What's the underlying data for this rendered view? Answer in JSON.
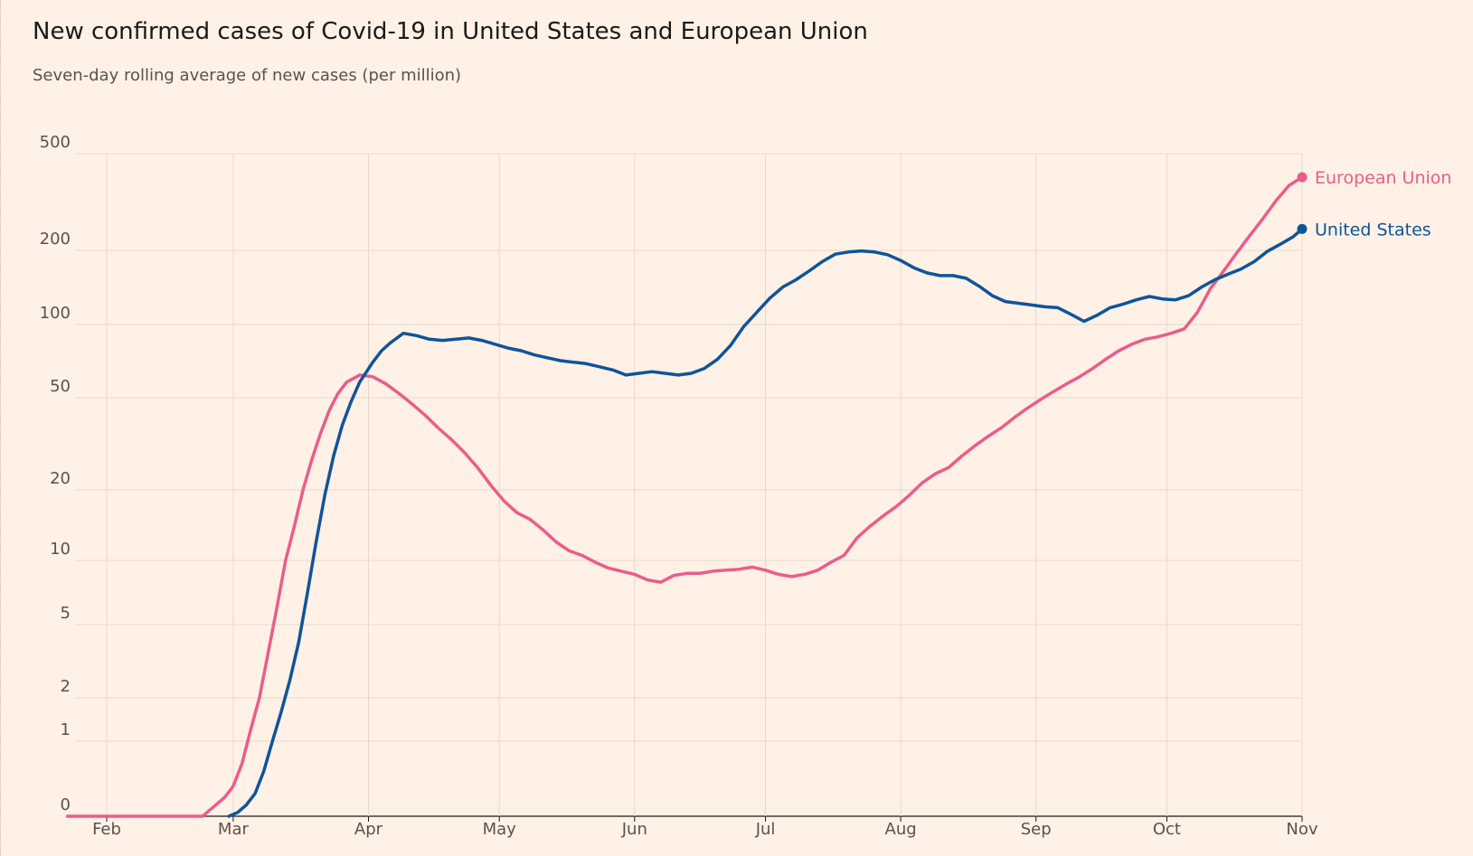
{
  "chart_data": {
    "type": "line",
    "title": "New confirmed cases of Covid-19 in United States and European Union",
    "subtitle": "Seven-day rolling average of new cases (per million)",
    "y_scale": "log (symlog, 0 at baseline)",
    "y_ticks": [
      0,
      1,
      2,
      5,
      10,
      20,
      50,
      100,
      200,
      500
    ],
    "y_tick_labels": [
      "0",
      "1",
      "2",
      "5",
      "10",
      "20",
      "50",
      "100",
      "200",
      "500"
    ],
    "x_ticks": [
      "Feb",
      "Mar",
      "Apr",
      "May",
      "Jun",
      "Jul",
      "Aug",
      "Sep",
      "Oct",
      "Nov"
    ],
    "x_range": [
      "2020-01-23",
      "2020-11-01"
    ],
    "ylim": [
      0,
      500
    ],
    "grid": true,
    "legend": "direct labels at line ends (right)",
    "colors": {
      "background": "#fff1e5",
      "grid": "#e6d9ce",
      "axis_text": "#59524c",
      "title": "#1a1a1a",
      "european_union": "#e95d8c",
      "united_states": "#0f5499"
    },
    "series": [
      {
        "name": "European Union",
        "color": "#e95d8c",
        "points": [
          [
            "2020-01-23",
            0
          ],
          [
            "2020-02-15",
            0
          ],
          [
            "2020-02-23",
            0
          ],
          [
            "2020-02-25",
            0.1
          ],
          [
            "2020-02-28",
            0.25
          ],
          [
            "2020-03-01",
            0.4
          ],
          [
            "2020-03-03",
            0.7
          ],
          [
            "2020-03-05",
            1.2
          ],
          [
            "2020-03-07",
            2.0
          ],
          [
            "2020-03-09",
            3.5
          ],
          [
            "2020-03-11",
            6
          ],
          [
            "2020-03-13",
            10
          ],
          [
            "2020-03-15",
            14
          ],
          [
            "2020-03-17",
            20
          ],
          [
            "2020-03-19",
            27
          ],
          [
            "2020-03-21",
            35
          ],
          [
            "2020-03-23",
            44
          ],
          [
            "2020-03-25",
            52
          ],
          [
            "2020-03-27",
            58
          ],
          [
            "2020-03-30",
            62
          ],
          [
            "2020-04-02",
            61
          ],
          [
            "2020-04-05",
            57
          ],
          [
            "2020-04-08",
            52
          ],
          [
            "2020-04-11",
            47
          ],
          [
            "2020-04-14",
            42
          ],
          [
            "2020-04-17",
            37
          ],
          [
            "2020-04-20",
            33
          ],
          [
            "2020-04-23",
            29
          ],
          [
            "2020-04-26",
            25
          ],
          [
            "2020-04-29",
            21
          ],
          [
            "2020-05-02",
            18
          ],
          [
            "2020-05-05",
            16
          ],
          [
            "2020-05-08",
            15
          ],
          [
            "2020-05-11",
            13.5
          ],
          [
            "2020-05-14",
            12
          ],
          [
            "2020-05-17",
            11
          ],
          [
            "2020-05-20",
            10.5
          ],
          [
            "2020-05-23",
            9.8
          ],
          [
            "2020-05-26",
            9.2
          ],
          [
            "2020-05-29",
            8.9
          ],
          [
            "2020-06-01",
            8.6
          ],
          [
            "2020-06-04",
            8.1
          ],
          [
            "2020-06-07",
            7.9
          ],
          [
            "2020-06-10",
            8.5
          ],
          [
            "2020-06-13",
            8.7
          ],
          [
            "2020-06-16",
            8.7
          ],
          [
            "2020-06-19",
            8.9
          ],
          [
            "2020-06-22",
            9.0
          ],
          [
            "2020-06-25",
            9.1
          ],
          [
            "2020-06-28",
            9.3
          ],
          [
            "2020-07-01",
            9.0
          ],
          [
            "2020-07-04",
            8.6
          ],
          [
            "2020-07-07",
            8.4
          ],
          [
            "2020-07-10",
            8.6
          ],
          [
            "2020-07-13",
            9.0
          ],
          [
            "2020-07-16",
            9.8
          ],
          [
            "2020-07-19",
            10.5
          ],
          [
            "2020-07-22",
            12.5
          ],
          [
            "2020-07-25",
            14
          ],
          [
            "2020-07-28",
            15.5
          ],
          [
            "2020-07-31",
            17
          ],
          [
            "2020-08-03",
            19
          ],
          [
            "2020-08-06",
            21.5
          ],
          [
            "2020-08-09",
            23.5
          ],
          [
            "2020-08-12",
            25
          ],
          [
            "2020-08-15",
            28
          ],
          [
            "2020-08-18",
            31
          ],
          [
            "2020-08-21",
            34
          ],
          [
            "2020-08-24",
            37
          ],
          [
            "2020-08-27",
            41
          ],
          [
            "2020-08-30",
            45
          ],
          [
            "2020-09-02",
            49
          ],
          [
            "2020-09-05",
            53
          ],
          [
            "2020-09-08",
            57
          ],
          [
            "2020-09-11",
            61
          ],
          [
            "2020-09-14",
            66
          ],
          [
            "2020-09-17",
            72
          ],
          [
            "2020-09-20",
            78
          ],
          [
            "2020-09-23",
            83
          ],
          [
            "2020-09-26",
            87
          ],
          [
            "2020-09-29",
            89
          ],
          [
            "2020-10-02",
            92
          ],
          [
            "2020-10-05",
            96
          ],
          [
            "2020-10-08",
            112
          ],
          [
            "2020-10-11",
            140
          ],
          [
            "2020-10-14",
            165
          ],
          [
            "2020-10-17",
            195
          ],
          [
            "2020-10-20",
            230
          ],
          [
            "2020-10-23",
            270
          ],
          [
            "2020-10-26",
            320
          ],
          [
            "2020-10-29",
            370
          ],
          [
            "2020-11-01",
            400
          ]
        ]
      },
      {
        "name": "United States",
        "color": "#0f5499",
        "points": [
          [
            "2020-02-29",
            0
          ],
          [
            "2020-03-02",
            0.05
          ],
          [
            "2020-03-04",
            0.15
          ],
          [
            "2020-03-06",
            0.3
          ],
          [
            "2020-03-08",
            0.6
          ],
          [
            "2020-03-10",
            1.0
          ],
          [
            "2020-03-12",
            1.6
          ],
          [
            "2020-03-14",
            2.5
          ],
          [
            "2020-03-16",
            4
          ],
          [
            "2020-03-18",
            7
          ],
          [
            "2020-03-20",
            12
          ],
          [
            "2020-03-22",
            19
          ],
          [
            "2020-03-24",
            28
          ],
          [
            "2020-03-26",
            38
          ],
          [
            "2020-03-28",
            48
          ],
          [
            "2020-03-30",
            58
          ],
          [
            "2020-04-02",
            70
          ],
          [
            "2020-04-04",
            78
          ],
          [
            "2020-04-06",
            84
          ],
          [
            "2020-04-09",
            92
          ],
          [
            "2020-04-12",
            90
          ],
          [
            "2020-04-15",
            87
          ],
          [
            "2020-04-18",
            86
          ],
          [
            "2020-04-21",
            87
          ],
          [
            "2020-04-24",
            88
          ],
          [
            "2020-04-27",
            86
          ],
          [
            "2020-04-30",
            83
          ],
          [
            "2020-05-03",
            80
          ],
          [
            "2020-05-06",
            78
          ],
          [
            "2020-05-09",
            75
          ],
          [
            "2020-05-12",
            73
          ],
          [
            "2020-05-15",
            71
          ],
          [
            "2020-05-18",
            70
          ],
          [
            "2020-05-21",
            69
          ],
          [
            "2020-05-24",
            67
          ],
          [
            "2020-05-27",
            65
          ],
          [
            "2020-05-30",
            62
          ],
          [
            "2020-06-02",
            63
          ],
          [
            "2020-06-05",
            64
          ],
          [
            "2020-06-08",
            63
          ],
          [
            "2020-06-11",
            62
          ],
          [
            "2020-06-14",
            63
          ],
          [
            "2020-06-17",
            66
          ],
          [
            "2020-06-20",
            72
          ],
          [
            "2020-06-23",
            82
          ],
          [
            "2020-06-26",
            98
          ],
          [
            "2020-06-29",
            112
          ],
          [
            "2020-07-02",
            128
          ],
          [
            "2020-07-05",
            142
          ],
          [
            "2020-07-08",
            152
          ],
          [
            "2020-07-11",
            165
          ],
          [
            "2020-07-14",
            180
          ],
          [
            "2020-07-17",
            193
          ],
          [
            "2020-07-20",
            197
          ],
          [
            "2020-07-23",
            199
          ],
          [
            "2020-07-26",
            197
          ],
          [
            "2020-07-29",
            192
          ],
          [
            "2020-08-01",
            182
          ],
          [
            "2020-08-04",
            170
          ],
          [
            "2020-08-07",
            162
          ],
          [
            "2020-08-10",
            158
          ],
          [
            "2020-08-13",
            158
          ],
          [
            "2020-08-16",
            154
          ],
          [
            "2020-08-19",
            143
          ],
          [
            "2020-08-22",
            131
          ],
          [
            "2020-08-25",
            124
          ],
          [
            "2020-08-28",
            122
          ],
          [
            "2020-08-31",
            120
          ],
          [
            "2020-09-03",
            118
          ],
          [
            "2020-09-06",
            117
          ],
          [
            "2020-09-09",
            110
          ],
          [
            "2020-09-12",
            103
          ],
          [
            "2020-09-15",
            109
          ],
          [
            "2020-09-18",
            117
          ],
          [
            "2020-09-21",
            121
          ],
          [
            "2020-09-24",
            126
          ],
          [
            "2020-09-27",
            130
          ],
          [
            "2020-09-30",
            127
          ],
          [
            "2020-10-03",
            126
          ],
          [
            "2020-10-06",
            131
          ],
          [
            "2020-10-09",
            142
          ],
          [
            "2020-10-12",
            152
          ],
          [
            "2020-10-15",
            160
          ],
          [
            "2020-10-18",
            168
          ],
          [
            "2020-10-21",
            180
          ],
          [
            "2020-10-24",
            198
          ],
          [
            "2020-10-27",
            212
          ],
          [
            "2020-10-30",
            228
          ],
          [
            "2020-11-01",
            245
          ]
        ]
      }
    ]
  }
}
